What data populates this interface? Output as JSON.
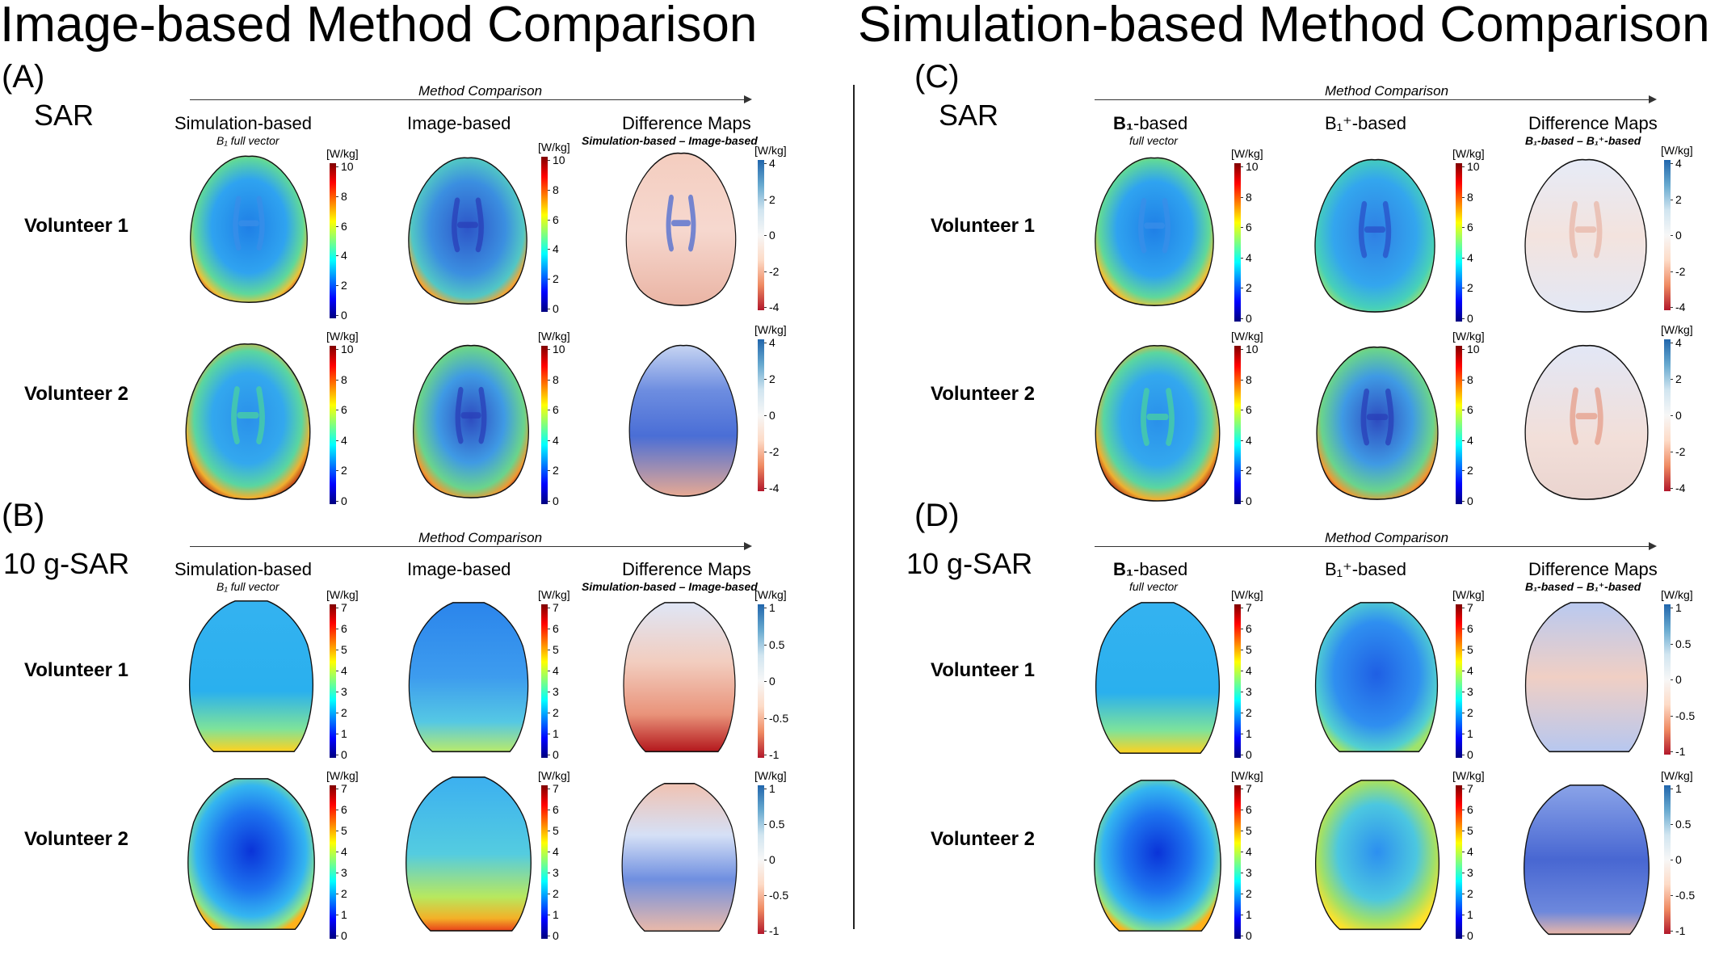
{
  "titles": {
    "left": "Image-based Method Comparison",
    "right": "Simulation-based Method Comparison"
  },
  "panels": {
    "A": {
      "letter": "(A)",
      "quantity": "SAR"
    },
    "B": {
      "letter": "(B)",
      "quantity": "10 g-SAR"
    },
    "C": {
      "letter": "(C)",
      "quantity": "SAR"
    },
    "D": {
      "letter": "(D)",
      "quantity": "10 g-SAR"
    }
  },
  "arrow_label": "Method Comparison",
  "columns_left": {
    "sim": "Simulation-based",
    "sim_sub": "B₁ full vector",
    "img": "Image-based",
    "diff": "Difference Maps",
    "diff_sub": "Simulation-based –   Image-based"
  },
  "columns_right": {
    "b1_bold": "B₁",
    "b1_rest": "-based",
    "b1_sub": "full vector",
    "b1plus": "B₁⁺-based",
    "diff": "Difference Maps",
    "diff_sub": "B₁-based  – B₁⁺-based"
  },
  "rows": {
    "v1": "Volunteer 1",
    "v2": "Volunteer 2"
  },
  "colorbars": {
    "unit": "[W/kg]",
    "sar_ticks": [
      "10",
      "8",
      "6",
      "4",
      "2",
      "0"
    ],
    "sar_diff_ticks": [
      "4",
      "2",
      "0",
      "-2",
      "-4"
    ],
    "sar10_ticks": [
      "7",
      "6",
      "5",
      "4",
      "3",
      "2",
      "1",
      "0"
    ],
    "diff_left_10g_ticks": [
      "1",
      "0.5",
      "0",
      "-0.5",
      "-1"
    ],
    "diff_right_10g_ticks": [
      "1",
      "0.5",
      "0",
      "-0.5",
      "-1"
    ]
  },
  "colors": {
    "jet": [
      "#00007f",
      "#0000ff",
      "#007fff",
      "#00ffff",
      "#7fff7f",
      "#ffff00",
      "#ff7f00",
      "#ff0000",
      "#7f0000"
    ],
    "diverging": [
      "#b2182b",
      "#ef8a62",
      "#fddbc7",
      "#f7f7f7",
      "#d1e5f0",
      "#67a9cf",
      "#2166ac"
    ]
  }
}
